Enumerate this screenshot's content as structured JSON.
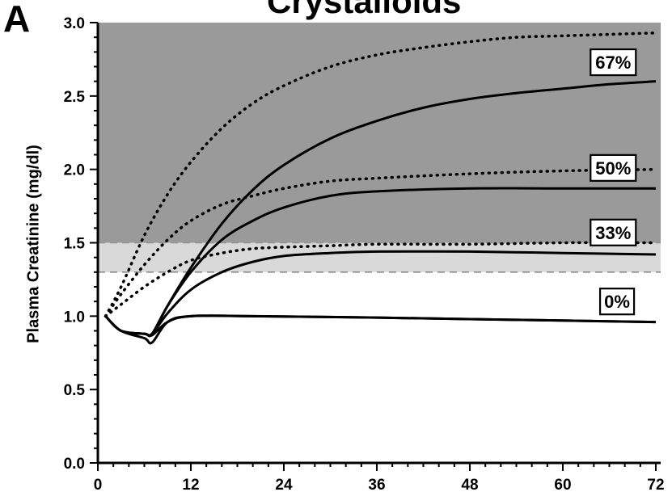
{
  "panel_label": "A",
  "chart_data": {
    "type": "line",
    "title": "Crystalloids",
    "xlabel": "",
    "ylabel": "Plasma Creatinine (mg/dl)",
    "xlim": [
      0,
      72
    ],
    "ylim": [
      0,
      3.0
    ],
    "xticks": [
      0,
      12,
      24,
      36,
      48,
      60,
      72
    ],
    "yticks": [
      0.0,
      0.5,
      1.0,
      1.5,
      2.0,
      2.5,
      3.0
    ],
    "ytick_labels": [
      "0.0",
      "0.5",
      "1.0",
      "1.5",
      "2.0",
      "2.5",
      "3.0"
    ],
    "bands": [
      {
        "from": 1.3,
        "to": 1.5,
        "color": "#d9d9d9",
        "border": "dashed"
      },
      {
        "from": 1.5,
        "to": 3.0,
        "color": "#9a9a9a"
      }
    ],
    "series": [
      {
        "label": "0%",
        "style": "solid",
        "x": [
          1,
          3,
          6,
          7,
          9,
          12,
          20,
          36,
          48,
          60,
          72
        ],
        "y": [
          1.0,
          0.9,
          0.88,
          0.87,
          0.96,
          1.0,
          1.0,
          0.99,
          0.98,
          0.97,
          0.96
        ]
      },
      {
        "label": "0%",
        "style": "solid-lower",
        "x": [
          1,
          3,
          6,
          7,
          9,
          12,
          20,
          36,
          48,
          60,
          72
        ],
        "y": [
          1.0,
          0.9,
          0.85,
          0.82,
          0.96,
          1.0,
          1.0,
          0.99,
          0.98,
          0.97,
          0.96
        ]
      },
      {
        "label": "33%",
        "style": "solid",
        "x": [
          1,
          3,
          6,
          7,
          9,
          12,
          16,
          20,
          24,
          30,
          36,
          48,
          60,
          72
        ],
        "y": [
          1.0,
          0.9,
          0.88,
          0.88,
          1.02,
          1.18,
          1.3,
          1.37,
          1.41,
          1.43,
          1.44,
          1.44,
          1.43,
          1.42
        ]
      },
      {
        "label": "33%",
        "style": "dotted",
        "x": [
          1,
          3,
          6,
          9,
          12,
          16,
          20,
          24,
          30,
          36,
          48,
          60,
          72
        ],
        "y": [
          1.0,
          1.08,
          1.2,
          1.3,
          1.38,
          1.43,
          1.46,
          1.47,
          1.48,
          1.49,
          1.49,
          1.5,
          1.5
        ]
      },
      {
        "label": "50%",
        "style": "solid",
        "x": [
          1,
          3,
          6,
          7,
          9,
          12,
          16,
          20,
          24,
          30,
          36,
          48,
          60,
          72
        ],
        "y": [
          1.0,
          0.9,
          0.88,
          0.88,
          1.07,
          1.3,
          1.52,
          1.65,
          1.74,
          1.82,
          1.85,
          1.87,
          1.87,
          1.87
        ]
      },
      {
        "label": "50%",
        "style": "dotted",
        "x": [
          1,
          3,
          6,
          9,
          12,
          16,
          20,
          24,
          30,
          36,
          48,
          60,
          72
        ],
        "y": [
          1.0,
          1.15,
          1.35,
          1.52,
          1.65,
          1.76,
          1.82,
          1.87,
          1.92,
          1.94,
          1.97,
          1.99,
          2.0
        ]
      },
      {
        "label": "67%",
        "style": "solid",
        "x": [
          1,
          3,
          6,
          7,
          9,
          12,
          16,
          20,
          24,
          30,
          36,
          42,
          48,
          54,
          60,
          66,
          72
        ],
        "y": [
          1.0,
          0.9,
          0.88,
          0.88,
          1.07,
          1.33,
          1.63,
          1.86,
          2.03,
          2.21,
          2.33,
          2.42,
          2.48,
          2.52,
          2.55,
          2.58,
          2.6
        ]
      },
      {
        "label": "67%",
        "style": "dotted",
        "x": [
          1,
          3,
          6,
          9,
          12,
          16,
          20,
          24,
          30,
          36,
          42,
          48,
          54,
          60,
          66,
          72
        ],
        "y": [
          1.0,
          1.2,
          1.55,
          1.83,
          2.05,
          2.28,
          2.45,
          2.57,
          2.7,
          2.78,
          2.83,
          2.87,
          2.9,
          2.91,
          2.92,
          2.93
        ]
      }
    ],
    "annotations": [
      {
        "text": "67%",
        "x": 66.5,
        "y": 2.73
      },
      {
        "text": "50%",
        "x": 66.5,
        "y": 2.01
      },
      {
        "text": "33%",
        "x": 66.5,
        "y": 1.57
      },
      {
        "text": "0%",
        "x": 67.0,
        "y": 1.1
      }
    ],
    "grid": false,
    "legend": "none"
  }
}
